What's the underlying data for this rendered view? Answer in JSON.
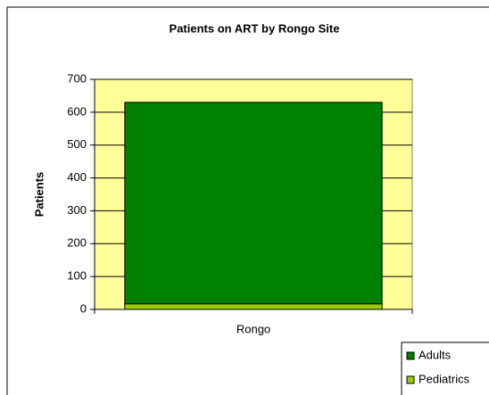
{
  "chart_data": {
    "type": "stacked_bar",
    "title": "Patients on ART by Rongo Site",
    "y_label": "Patients",
    "categories": [
      "Rongo"
    ],
    "series": [
      {
        "name": "Adults",
        "color": "#008000",
        "values": [
          613
        ]
      },
      {
        "name": "Pediatrics",
        "color": "#99CC00",
        "values": [
          17
        ]
      }
    ],
    "ylim": [
      0,
      700
    ],
    "yticks": [
      0,
      100,
      200,
      300,
      400,
      500,
      600,
      700
    ],
    "grid": true,
    "plot_background": "#FFFF99",
    "legend": "bottom-right"
  }
}
